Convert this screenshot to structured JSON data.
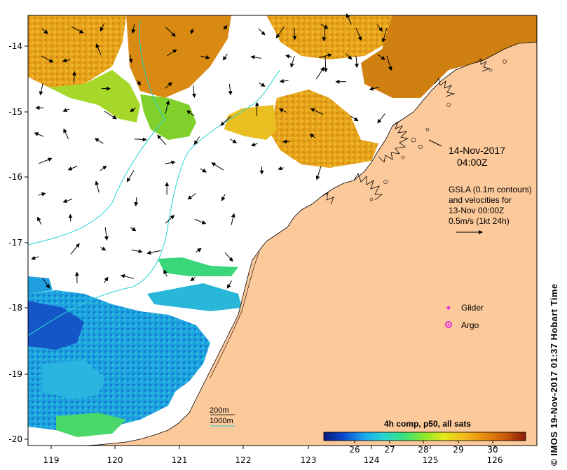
{
  "map": {
    "x_ticks": [
      "119",
      "120",
      "121",
      "122",
      "123",
      "124",
      "125",
      "126"
    ],
    "y_ticks": [
      "-14",
      "-15",
      "-16",
      "-17",
      "-18",
      "-19",
      "-20"
    ],
    "colors": {
      "land": "#fcc99b",
      "coastline": "#000000",
      "contour_200m": "#000000",
      "contour_1000m": "#22d3d3",
      "sst_warm": "#e6a01a",
      "sst_cool": "#1f9fe0",
      "glider": "#e030e0",
      "argo": "#e030e0"
    }
  },
  "annotations": {
    "date": "14-Nov-2017",
    "time": "04:00Z",
    "gsla_line1": "GSLA (0.1m contours)",
    "gsla_line2": "and velocities for",
    "gsla_line3": "13-Nov 00:00Z",
    "gsla_line4": "0.5m/s (1kt 24h)"
  },
  "legend": {
    "glider_label": "Glider",
    "argo_label": "Argo",
    "depth_200": "200m",
    "depth_1000": "1000m"
  },
  "colorbar": {
    "title": "4h comp, p50, all sats",
    "ticks": [
      "26",
      "27",
      "28",
      "29",
      "30"
    ],
    "stops": [
      "#0a1a7a",
      "#0a4bd0",
      "#1aa6f0",
      "#27d6d0",
      "#3ae07a",
      "#8fe82a",
      "#e6e61a",
      "#f2b81a",
      "#e68a10",
      "#c85a08",
      "#8a1a0a"
    ]
  },
  "credit": "© IMOS 19-Nov-2017 01:37 Hobart Time"
}
